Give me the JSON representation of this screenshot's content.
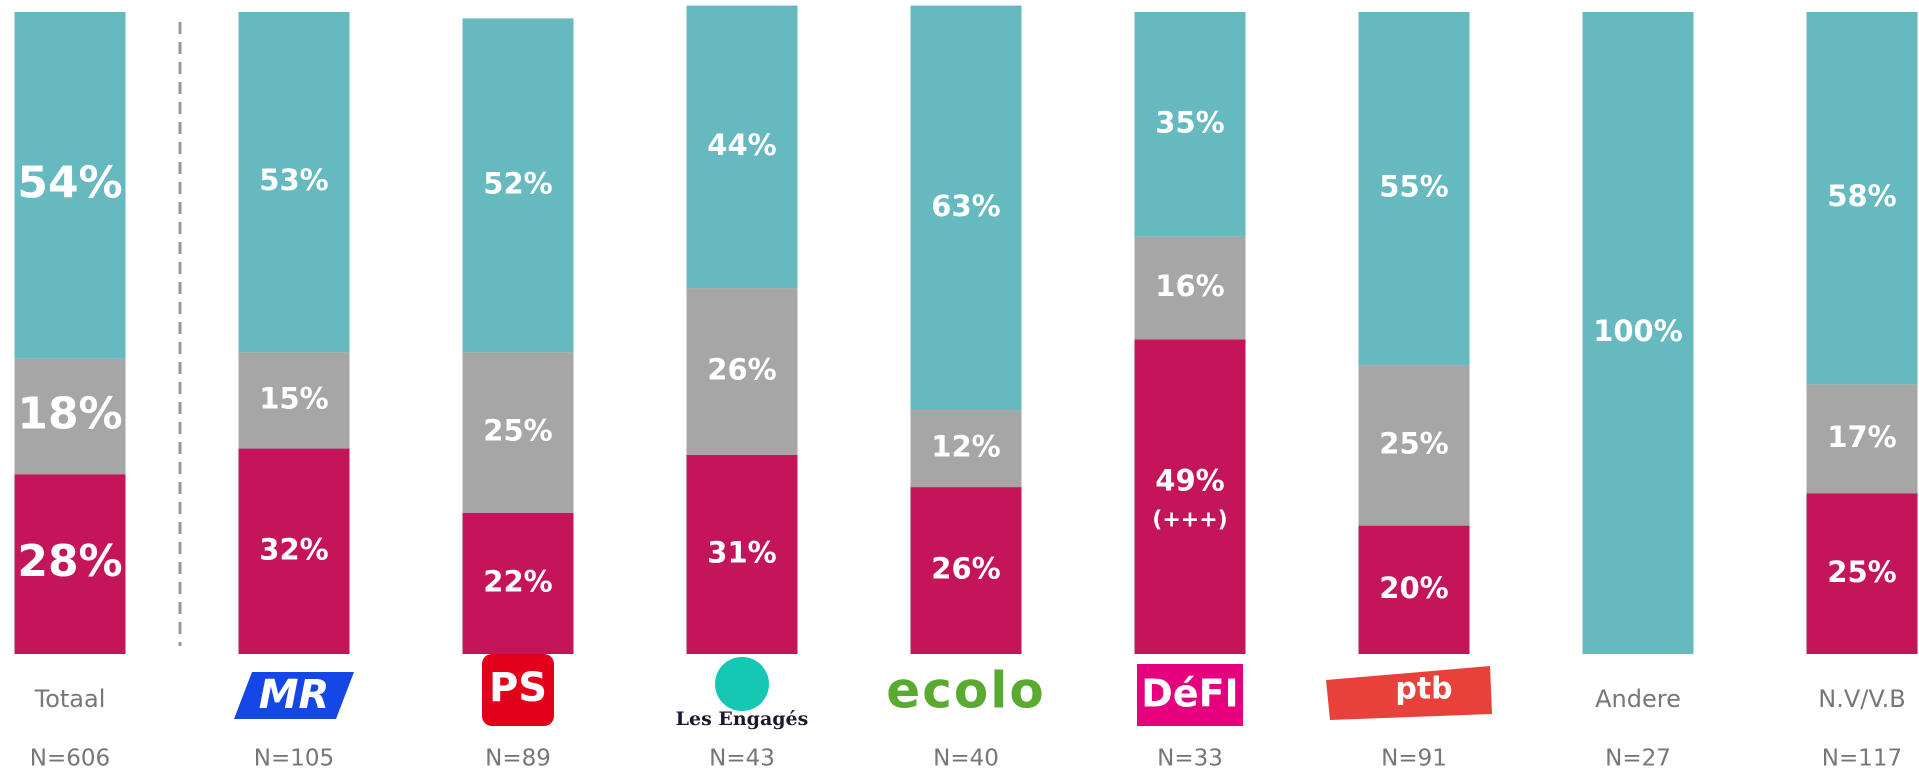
{
  "chart_data": {
    "type": "stacked_bar",
    "categories": [
      "Totaal",
      "MR",
      "PS",
      "Les Engagés",
      "ecolo",
      "DéFI",
      "ptb",
      "Andere",
      "N.V/V.B"
    ],
    "n_labels": [
      "N=606",
      "N=105",
      "N=89",
      "N=43",
      "N=40",
      "N=33",
      "N=91",
      "N=27",
      "N=117"
    ],
    "ylim": [
      0,
      100
    ],
    "series": [
      {
        "color": "#c4145a",
        "values": [
          28,
          32,
          22,
          31,
          26,
          49,
          20,
          null,
          25
        ],
        "value_labels": [
          "28%",
          "32%",
          "22%",
          "31%",
          "26%",
          "49%",
          "20%",
          null,
          "25%"
        ],
        "notes": [
          null,
          null,
          null,
          null,
          null,
          "(+++)",
          null,
          null,
          null
        ]
      },
      {
        "color": "#a6a6a6",
        "values": [
          18,
          15,
          25,
          26,
          12,
          16,
          25,
          null,
          17
        ],
        "value_labels": [
          "18%",
          "15%",
          "25%",
          "26%",
          "12%",
          "16%",
          "25%",
          null,
          "17%"
        ]
      },
      {
        "color": "#66b9bf",
        "values": [
          54,
          53,
          52,
          44,
          63,
          35,
          55,
          100,
          58
        ],
        "value_labels": [
          "54%",
          "53%",
          "52%",
          "44%",
          "63%",
          "35%",
          "55%",
          "100%",
          "58%"
        ]
      }
    ]
  }
}
